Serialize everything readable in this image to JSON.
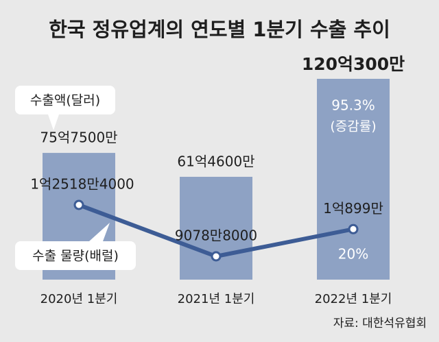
{
  "chart_data": {
    "type": "bar_line",
    "title": "한국 정유업계의 연도별 1분기 수출 추이",
    "categories": [
      "2020년 1분기",
      "2021년 1분기",
      "2022년 1분기"
    ],
    "series": [
      {
        "name": "수출액(달러)",
        "type": "bar",
        "color": "#8ea2c4",
        "values": [
          7575000000,
          6146000000,
          12003000000
        ],
        "value_labels": [
          "75억7500만",
          "61억4600만",
          "120억300만"
        ],
        "growth": {
          "value": 95.3,
          "label": "95.3%"
        }
      },
      {
        "name": "수출 물량(배럴)",
        "type": "line",
        "axis": "y2",
        "color": "#3d5c95",
        "values": [
          125184000,
          90788000,
          108990000
        ],
        "value_labels": [
          "1억2518만4000",
          "9078만8000",
          "1억899만"
        ],
        "growth": {
          "value": 20,
          "label": "20%"
        }
      }
    ],
    "growth_note": "(증감률)",
    "source": "자료: 대한석유협회"
  }
}
